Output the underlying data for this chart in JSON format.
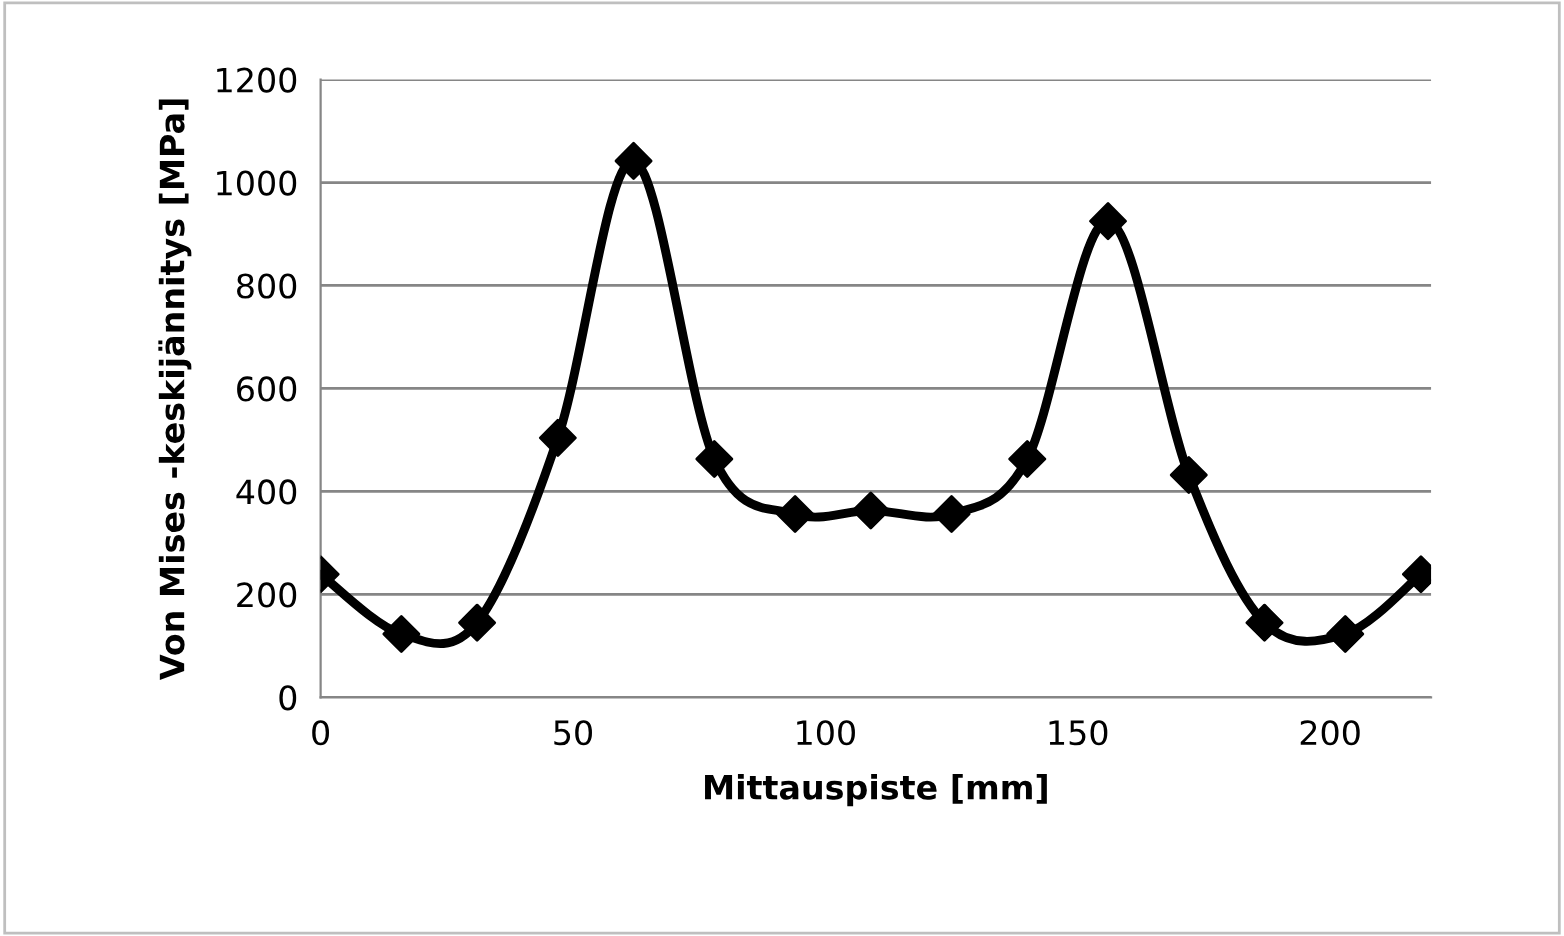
{
  "chart_data": {
    "type": "line",
    "xlabel": "Mittauspiste [mm]",
    "ylabel": "Von Mises -keskijännitys [MPa]",
    "x": [
      0,
      16,
      31,
      47,
      62,
      78,
      94,
      109,
      125,
      140,
      156,
      172,
      187,
      203,
      218
    ],
    "series": [
      {
        "color": "#000000",
        "values": [
          239,
          123,
          145,
          504,
          1042,
          463,
          356,
          363,
          356,
          463,
          925,
          432,
          145,
          123,
          239
        ]
      }
    ],
    "xlim": [
      0,
      220
    ],
    "xticks": [
      0,
      50,
      100,
      150,
      200
    ],
    "ylim": [
      0,
      1200
    ],
    "yticks": [
      0,
      200,
      400,
      600,
      800,
      1000,
      1200
    ],
    "grid": "y",
    "marker": "diamond",
    "line_style": "solid",
    "legend": false
  }
}
